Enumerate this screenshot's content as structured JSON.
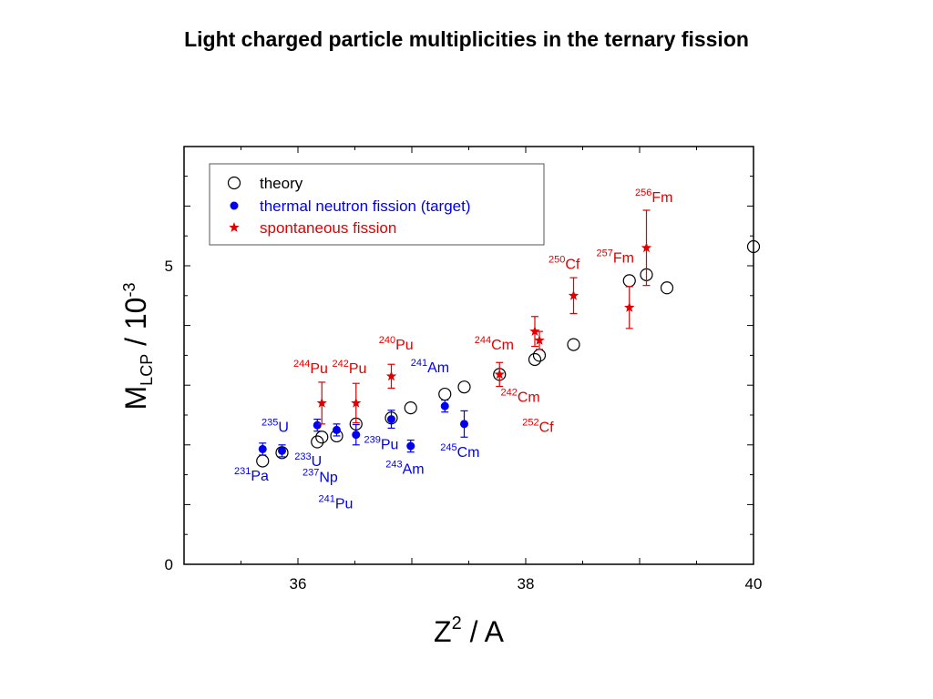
{
  "title": "Light charged particle multiplicities in the ternary fission",
  "colors": {
    "theory": "#000000",
    "thermal": "#0000ee",
    "spontaneous": "#e00000"
  },
  "chart_data": {
    "type": "scatter",
    "title": "Light charged particle multiplicities in the ternary fission",
    "xlabel": {
      "base": "Z",
      "sup": "2",
      "rest": " / A"
    },
    "ylabel": {
      "base": "M",
      "sub": "LCP",
      "rest": " / 10",
      "sup": "-3"
    },
    "xlim": [
      35,
      40
    ],
    "ylim": [
      0,
      7
    ],
    "xticks": [
      36,
      38,
      40
    ],
    "yticks": [
      0,
      5
    ],
    "legend": {
      "position": "top-left"
    },
    "series": [
      {
        "name": "theory",
        "marker": "open-circle",
        "color": "#000000",
        "points": [
          {
            "x": 35.69,
            "y": 1.73
          },
          {
            "x": 35.86,
            "y": 1.87
          },
          {
            "x": 36.17,
            "y": 2.05
          },
          {
            "x": 36.21,
            "y": 2.13
          },
          {
            "x": 36.34,
            "y": 2.15
          },
          {
            "x": 36.51,
            "y": 2.35
          },
          {
            "x": 36.82,
            "y": 2.45
          },
          {
            "x": 36.99,
            "y": 2.62
          },
          {
            "x": 37.29,
            "y": 2.85
          },
          {
            "x": 37.46,
            "y": 2.97
          },
          {
            "x": 37.77,
            "y": 3.18
          },
          {
            "x": 38.08,
            "y": 3.43
          },
          {
            "x": 38.12,
            "y": 3.5
          },
          {
            "x": 38.42,
            "y": 3.68
          },
          {
            "x": 38.91,
            "y": 4.75
          },
          {
            "x": 39.06,
            "y": 4.85
          },
          {
            "x": 39.24,
            "y": 4.63
          },
          {
            "x": 40.0,
            "y": 5.32
          }
        ]
      },
      {
        "name": "thermal neutron fission (target)",
        "marker": "filled-circle",
        "color": "#0000ee",
        "points": [
          {
            "x": 35.69,
            "y": 1.93,
            "err": 0.1
          },
          {
            "x": 35.86,
            "y": 1.9,
            "err": 0.1
          },
          {
            "x": 36.17,
            "y": 2.33,
            "err": 0.1
          },
          {
            "x": 36.34,
            "y": 2.25,
            "err": 0.1
          },
          {
            "x": 36.51,
            "y": 2.17,
            "err": 0.17
          },
          {
            "x": 36.82,
            "y": 2.43,
            "err": 0.15
          },
          {
            "x": 36.99,
            "y": 1.98,
            "err": 0.1
          },
          {
            "x": 37.29,
            "y": 2.65,
            "err": 0.1
          },
          {
            "x": 37.46,
            "y": 2.35,
            "err": 0.22
          }
        ]
      },
      {
        "name": "spontaneous fission",
        "marker": "star",
        "color": "#e00000",
        "points": [
          {
            "x": 36.21,
            "y": 2.7,
            "err": 0.35
          },
          {
            "x": 36.51,
            "y": 2.7,
            "err": 0.33
          },
          {
            "x": 36.82,
            "y": 3.15,
            "err": 0.2
          },
          {
            "x": 37.77,
            "y": 3.18,
            "err": 0.2
          },
          {
            "x": 38.08,
            "y": 3.9,
            "err": 0.25
          },
          {
            "x": 38.12,
            "y": 3.75,
            "err": 0.15
          },
          {
            "x": 38.42,
            "y": 4.5,
            "err": 0.3
          },
          {
            "x": 38.91,
            "y": 4.3,
            "err": 0.35
          },
          {
            "x": 39.06,
            "y": 5.3,
            "err": 0.63
          }
        ]
      }
    ],
    "annotations": [
      {
        "sup": "256",
        "el": "Fm",
        "color": "spontaneous",
        "x": 38.96,
        "y": 6.07
      },
      {
        "sup": "250",
        "el": "Cf",
        "color": "spontaneous",
        "x": 38.2,
        "y": 4.95
      },
      {
        "sup": "257",
        "el": "Fm",
        "color": "spontaneous",
        "x": 38.62,
        "y": 5.05
      },
      {
        "sup": "240",
        "el": "Pu",
        "color": "spontaneous",
        "x": 36.71,
        "y": 3.6
      },
      {
        "sup": "244",
        "el": "Cm",
        "color": "spontaneous",
        "x": 37.55,
        "y": 3.6
      },
      {
        "sup": "244",
        "el": "Pu",
        "color": "spontaneous",
        "x": 35.96,
        "y": 3.2
      },
      {
        "sup": "242",
        "el": "Pu",
        "color": "spontaneous",
        "x": 36.3,
        "y": 3.2
      },
      {
        "sup": "242",
        "el": "Cm",
        "color": "spontaneous",
        "x": 37.78,
        "y": 2.72
      },
      {
        "sup": "252",
        "el": "Cf",
        "color": "spontaneous",
        "x": 37.97,
        "y": 2.22
      },
      {
        "sup": "241",
        "el": "Am",
        "color": "thermal",
        "x": 36.99,
        "y": 3.22
      },
      {
        "sup": "235",
        "el": "U",
        "color": "thermal",
        "x": 35.68,
        "y": 2.22
      },
      {
        "sup": "239",
        "el": "Pu",
        "color": "thermal",
        "x": 36.58,
        "y": 1.93
      },
      {
        "sup": "233",
        "el": "U",
        "color": "thermal",
        "x": 35.97,
        "y": 1.65
      },
      {
        "sup": "245",
        "el": "Cm",
        "color": "thermal",
        "x": 37.25,
        "y": 1.8
      },
      {
        "sup": "243",
        "el": "Am",
        "color": "thermal",
        "x": 36.77,
        "y": 1.52
      },
      {
        "sup": "237",
        "el": "Np",
        "color": "thermal",
        "x": 36.04,
        "y": 1.38
      },
      {
        "sup": "231",
        "el": "Pa",
        "color": "thermal",
        "x": 35.44,
        "y": 1.4
      },
      {
        "sup": "241",
        "el": "Pu",
        "color": "thermal",
        "x": 36.18,
        "y": 0.94
      }
    ]
  }
}
